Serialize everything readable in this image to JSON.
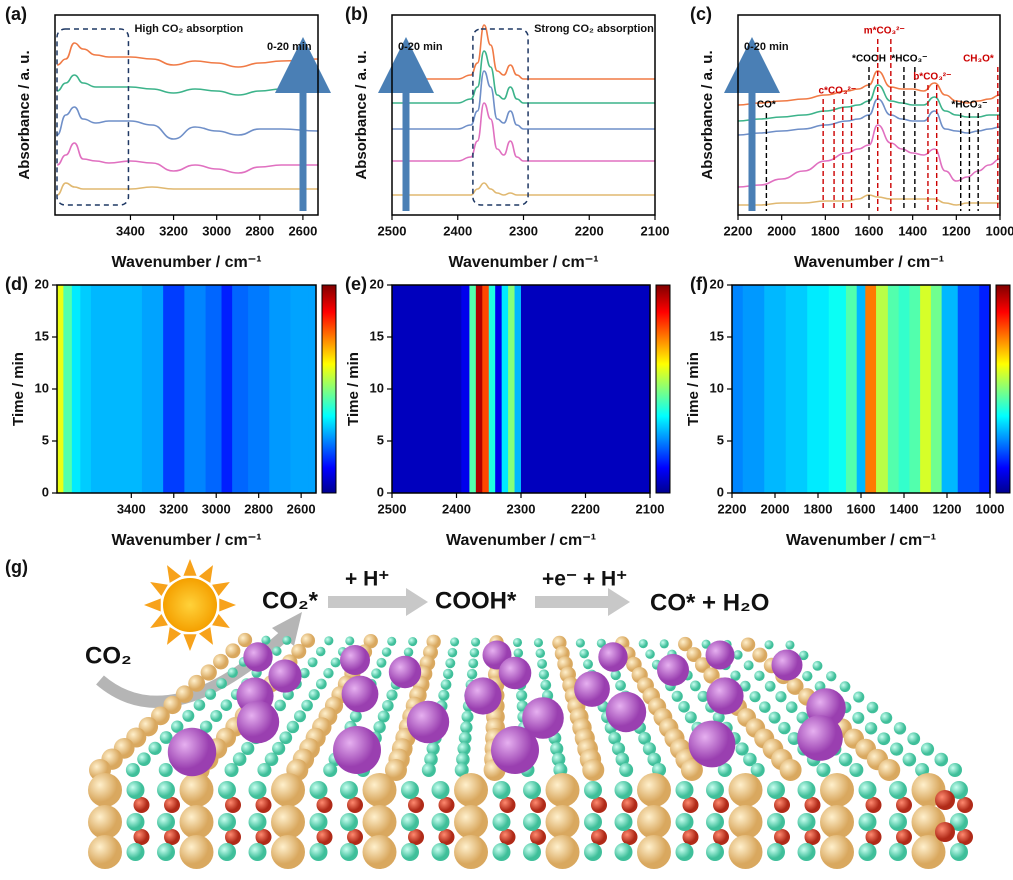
{
  "chart_data": [
    {
      "type": "line",
      "panel_label": "(a)",
      "x_label": "Wavenumber / cm⁻¹",
      "y_label": "Absorbance / a. u.",
      "xlim": [
        3750,
        2530
      ],
      "xticks": [
        3400,
        3200,
        3000,
        2800,
        2600
      ],
      "ylim": [
        0,
        1
      ],
      "highlight": {
        "label": "High CO₂ absorption",
        "range": [
          3750,
          3400
        ]
      },
      "arrow_label": "0-20 min",
      "x": [
        3740,
        3700,
        3660,
        3620,
        3560,
        3500,
        3400,
        3300,
        3200,
        3100,
        3000,
        2900,
        2800,
        2700,
        2530
      ],
      "series": [
        {
          "color": "#f07a45",
          "values": [
            0.75,
            0.78,
            0.86,
            0.83,
            0.8,
            0.79,
            0.79,
            0.78,
            0.75,
            0.77,
            0.76,
            0.74,
            0.76,
            0.77,
            0.78
          ]
        },
        {
          "color": "#3cb38a",
          "values": [
            0.62,
            0.66,
            0.7,
            0.66,
            0.64,
            0.64,
            0.64,
            0.63,
            0.61,
            0.63,
            0.62,
            0.6,
            0.62,
            0.63,
            0.63
          ]
        },
        {
          "color": "#6f8fc8",
          "values": [
            0.4,
            0.5,
            0.54,
            0.48,
            0.46,
            0.47,
            0.47,
            0.45,
            0.38,
            0.44,
            0.42,
            0.4,
            0.43,
            0.43,
            0.42
          ]
        },
        {
          "color": "#e070c0",
          "values": [
            0.25,
            0.3,
            0.36,
            0.28,
            0.27,
            0.26,
            0.27,
            0.26,
            0.22,
            0.25,
            0.23,
            0.21,
            0.24,
            0.25,
            0.25
          ]
        },
        {
          "color": "#e0b870",
          "values": [
            0.1,
            0.16,
            0.14,
            0.13,
            0.13,
            0.13,
            0.13,
            0.14,
            0.13,
            0.13,
            0.13,
            0.13,
            0.13,
            0.13,
            0.13
          ]
        }
      ]
    },
    {
      "type": "line",
      "panel_label": "(b)",
      "x_label": "Wavenumber / cm⁻¹",
      "y_label": "Absorbance / a. u.",
      "xlim": [
        2500,
        2100
      ],
      "xticks": [
        2500,
        2400,
        2300,
        2200,
        2100
      ],
      "ylim": [
        0,
        1
      ],
      "highlight": {
        "label": "Strong CO₂ absorption",
        "range": [
          2380,
          2290
        ]
      },
      "arrow_label": "0-20 min",
      "x": [
        2500,
        2400,
        2380,
        2370,
        2360,
        2350,
        2340,
        2330,
        2320,
        2310,
        2300,
        2200,
        2100
      ],
      "series": [
        {
          "color": "#f07a45",
          "values": [
            0.68,
            0.68,
            0.7,
            0.76,
            0.95,
            0.85,
            0.72,
            0.7,
            0.75,
            0.7,
            0.68,
            0.68,
            0.68
          ]
        },
        {
          "color": "#3cb38a",
          "values": [
            0.56,
            0.56,
            0.58,
            0.64,
            0.82,
            0.74,
            0.6,
            0.58,
            0.64,
            0.58,
            0.56,
            0.56,
            0.56
          ]
        },
        {
          "color": "#6f8fc8",
          "values": [
            0.43,
            0.43,
            0.45,
            0.52,
            0.72,
            0.64,
            0.48,
            0.46,
            0.52,
            0.45,
            0.43,
            0.43,
            0.43
          ]
        },
        {
          "color": "#e070c0",
          "values": [
            0.27,
            0.27,
            0.29,
            0.37,
            0.56,
            0.48,
            0.33,
            0.3,
            0.37,
            0.29,
            0.27,
            0.27,
            0.27
          ]
        },
        {
          "color": "#e0b870",
          "values": [
            0.1,
            0.1,
            0.1,
            0.13,
            0.16,
            0.13,
            0.11,
            0.1,
            0.11,
            0.1,
            0.1,
            0.1,
            0.1
          ]
        }
      ]
    },
    {
      "type": "line",
      "panel_label": "(c)",
      "x_label": "Wavenumber / cm⁻¹",
      "y_label": "Absorbance / a. u.",
      "xlim": [
        2200,
        1000
      ],
      "xticks": [
        2200,
        2000,
        1800,
        1600,
        1400,
        1200,
        1000
      ],
      "ylim": [
        0,
        1
      ],
      "arrow_label": "0-20 min",
      "annotations": [
        {
          "label": "CO*",
          "color": "#000000",
          "x": [
            2070
          ]
        },
        {
          "label": "c*CO₃²⁻",
          "color": "#cc0000",
          "x": [
            1810,
            1760,
            1720,
            1680
          ]
        },
        {
          "label": "*COOH",
          "color": "#000000",
          "x": [
            1600
          ]
        },
        {
          "label": "m*CO₃²⁻",
          "color": "#cc0000",
          "x": [
            1560,
            1500
          ]
        },
        {
          "label": "*HCO₃⁻",
          "color": "#000000",
          "x": [
            1440,
            1390
          ]
        },
        {
          "label": "b*CO₃²⁻",
          "color": "#cc0000",
          "x": [
            1330,
            1290
          ]
        },
        {
          "label": "*HCO₃⁻",
          "color": "#000000",
          "x": [
            1180,
            1140,
            1100
          ]
        },
        {
          "label": "CH₃O*",
          "color": "#cc0000",
          "x": [
            1010
          ]
        }
      ],
      "x": [
        2200,
        2100,
        2000,
        1900,
        1800,
        1700,
        1650,
        1600,
        1560,
        1500,
        1450,
        1400,
        1350,
        1300,
        1250,
        1200,
        1150,
        1100,
        1050,
        1000
      ],
      "series": [
        {
          "color": "#f07a45",
          "values": [
            0.55,
            0.56,
            0.57,
            0.58,
            0.6,
            0.62,
            0.63,
            0.65,
            0.72,
            0.64,
            0.63,
            0.63,
            0.62,
            0.66,
            0.6,
            0.57,
            0.56,
            0.57,
            0.58,
            0.6
          ]
        },
        {
          "color": "#3cb38a",
          "values": [
            0.47,
            0.48,
            0.49,
            0.5,
            0.52,
            0.54,
            0.55,
            0.57,
            0.65,
            0.57,
            0.56,
            0.55,
            0.55,
            0.59,
            0.52,
            0.5,
            0.49,
            0.49,
            0.5,
            0.5
          ]
        },
        {
          "color": "#6f8fc8",
          "values": [
            0.4,
            0.41,
            0.42,
            0.43,
            0.45,
            0.47,
            0.48,
            0.5,
            0.58,
            0.5,
            0.48,
            0.47,
            0.47,
            0.52,
            0.43,
            0.42,
            0.41,
            0.42,
            0.43,
            0.44
          ]
        },
        {
          "color": "#e070c0",
          "values": [
            0.14,
            0.15,
            0.18,
            0.22,
            0.27,
            0.31,
            0.33,
            0.35,
            0.45,
            0.36,
            0.33,
            0.31,
            0.3,
            0.33,
            0.22,
            0.17,
            0.19,
            0.22,
            0.25,
            0.28
          ]
        },
        {
          "color": "#e0b870",
          "values": [
            0.05,
            0.05,
            0.06,
            0.06,
            0.07,
            0.07,
            0.08,
            0.1,
            0.09,
            0.08,
            0.08,
            0.08,
            0.08,
            0.08,
            0.06,
            0.05,
            0.06,
            0.06,
            0.06,
            0.06
          ]
        }
      ]
    },
    {
      "type": "heatmap",
      "panel_label": "(d)",
      "x_label": "Wavenumber / cm⁻¹",
      "y_label": "Time / min",
      "xlim": [
        3750,
        2530
      ],
      "xticks": [
        3400,
        3200,
        3000,
        2800,
        2600
      ],
      "ylim": [
        0,
        20
      ],
      "yticks": [
        0,
        5,
        10,
        15,
        20
      ],
      "x": [
        3740,
        3700,
        3660,
        3620,
        3560,
        3500,
        3400,
        3300,
        3200,
        3100,
        3000,
        2950,
        2900,
        2800,
        2700,
        2600,
        2530
      ],
      "values": [
        0.6,
        0.45,
        0.35,
        0.32,
        0.3,
        0.3,
        0.3,
        0.28,
        0.18,
        0.25,
        0.22,
        0.15,
        0.22,
        0.24,
        0.27,
        0.28,
        0.28
      ]
    },
    {
      "type": "heatmap",
      "panel_label": "(e)",
      "x_label": "Wavenumber / cm⁻¹",
      "y_label": "Time / min",
      "xlim": [
        2500,
        2100
      ],
      "xticks": [
        2500,
        2400,
        2300,
        2200,
        2100
      ],
      "ylim": [
        0,
        20
      ],
      "yticks": [
        0,
        5,
        10,
        15,
        20
      ],
      "x": [
        2500,
        2400,
        2385,
        2375,
        2365,
        2355,
        2345,
        2335,
        2325,
        2315,
        2305,
        2295,
        2200,
        2100
      ],
      "values": [
        0.05,
        0.05,
        0.1,
        0.45,
        0.95,
        0.8,
        0.4,
        0.1,
        0.35,
        0.5,
        0.3,
        0.05,
        0.05,
        0.05
      ]
    },
    {
      "type": "heatmap",
      "panel_label": "(f)",
      "x_label": "Wavenumber / cm⁻¹",
      "y_label": "Time / min",
      "xlim": [
        2200,
        1000
      ],
      "xticks": [
        2200,
        2000,
        1800,
        1600,
        1400,
        1200,
        1000
      ],
      "ylim": [
        0,
        20
      ],
      "yticks": [
        0,
        5,
        10,
        15,
        20
      ],
      "x": [
        2200,
        2100,
        2000,
        1900,
        1800,
        1700,
        1640,
        1600,
        1560,
        1500,
        1450,
        1400,
        1350,
        1300,
        1250,
        1200,
        1100,
        1000
      ],
      "values": [
        0.25,
        0.27,
        0.3,
        0.32,
        0.35,
        0.38,
        0.45,
        0.3,
        0.75,
        0.55,
        0.45,
        0.42,
        0.45,
        0.58,
        0.48,
        0.3,
        0.2,
        0.15
      ]
    }
  ],
  "diagram": {
    "panel_label": "(g)",
    "reactant": "CO₂",
    "adsorbed": "CO₂*",
    "step1": "+ H⁺",
    "intermediate": "COOH*",
    "step2": "+e⁻ + H⁺",
    "product": "CO* + H₂O"
  }
}
